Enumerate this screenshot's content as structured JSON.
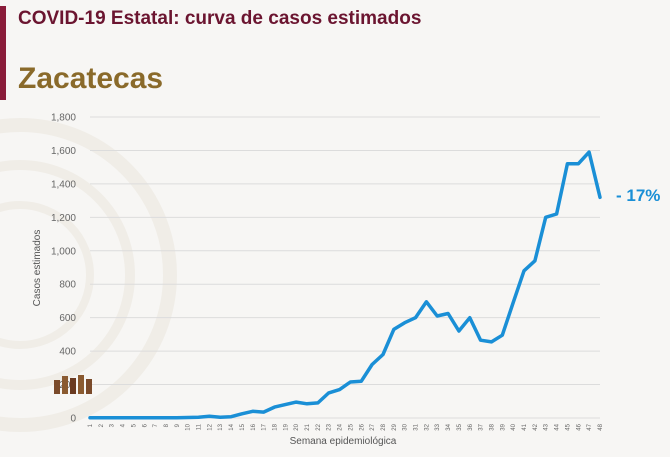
{
  "header": {
    "title": "COVID-19 Estatal: curva de casos estimados",
    "state": "Zacatecas"
  },
  "change_label": "- 17%",
  "colors": {
    "accent": "#8a1c3a",
    "title": "#6b1530",
    "state": "#8a6a2a",
    "line": "#1a8fd6"
  },
  "chart_data": {
    "type": "line",
    "title": "",
    "xlabel": "Semana epidemiológica",
    "ylabel": "Casos estimados",
    "ylim": [
      0,
      1800
    ],
    "yticks": [
      0,
      200,
      400,
      600,
      800,
      1000,
      1200,
      1400,
      1600,
      1800
    ],
    "ytick_labels": [
      "0",
      "200",
      "400",
      "600",
      "800",
      "1,000",
      "1,200",
      "1,400",
      "1,600",
      "1,800"
    ],
    "grid": "horizontal",
    "categories": [
      "1",
      "2",
      "3",
      "4",
      "5",
      "6",
      "7",
      "8",
      "9",
      "10",
      "11",
      "12",
      "13",
      "14",
      "15",
      "16",
      "17",
      "18",
      "19",
      "20",
      "21",
      "22",
      "23",
      "24",
      "25",
      "26",
      "27",
      "28",
      "29",
      "30",
      "31",
      "32",
      "33",
      "34",
      "35",
      "36",
      "37",
      "38",
      "39",
      "40",
      "41",
      "42",
      "43",
      "44",
      "45",
      "46",
      "47",
      "48"
    ],
    "series": [
      {
        "values": [
          2,
          2,
          2,
          2,
          2,
          2,
          2,
          2,
          2,
          3,
          5,
          10,
          5,
          8,
          25,
          40,
          35,
          65,
          80,
          95,
          85,
          90,
          150,
          170,
          215,
          220,
          320,
          380,
          530,
          570,
          600,
          695,
          610,
          625,
          520,
          600,
          465,
          455,
          495,
          690,
          880,
          940,
          1200,
          1220,
          1520,
          1520,
          1590,
          1320
        ]
      }
    ]
  }
}
